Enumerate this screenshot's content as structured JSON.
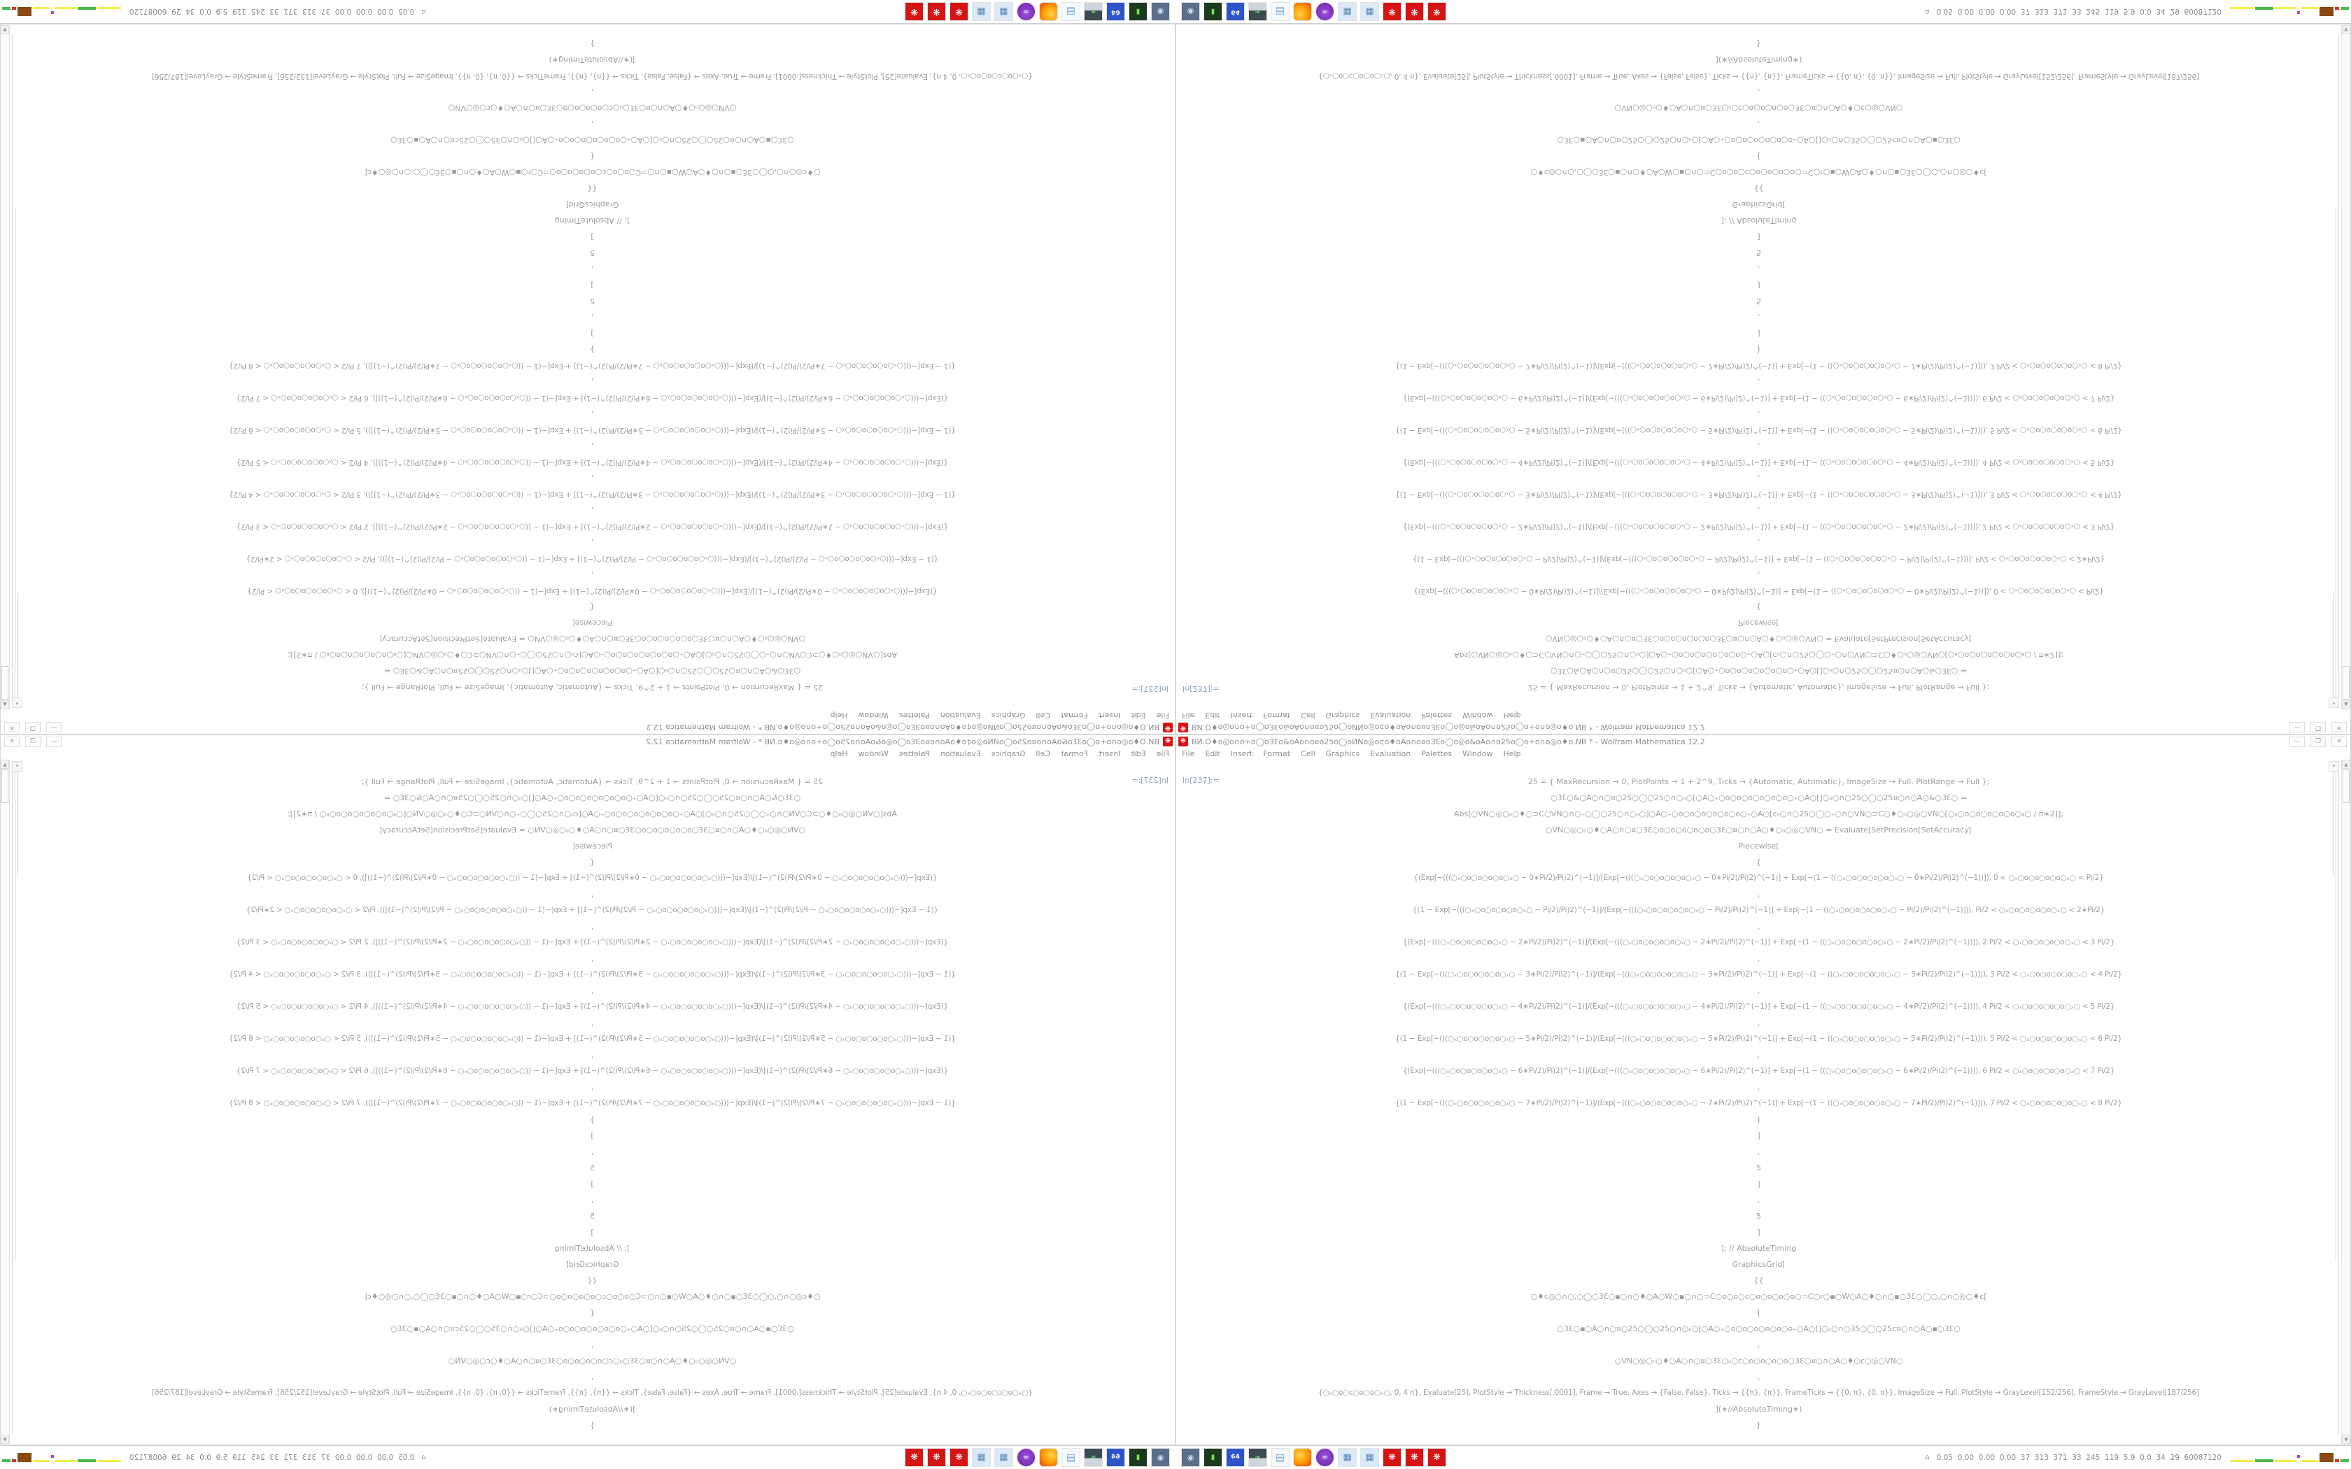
{
  "window": {
    "title_garbled": "ВИ.О♦о◎о∩о+о◯оЗƐо&оАо∩о¤о25о◯оИNо◎о¢о♦оАо∩о¤оЗƐо◯о◎о&оАо∩о25о◯о+о∩о◎о♦о",
    "title_suffix": ".NB * - Wolfram Mathematica 12.2",
    "controls": {
      "minimize": "—",
      "restore": "❐",
      "close": "✕"
    }
  },
  "menu": {
    "items": [
      "File",
      "Edit",
      "Insert",
      "Format",
      "Cell",
      "Graphics",
      "Evaluation",
      "Palettes",
      "Window",
      "Help"
    ]
  },
  "notebook": {
    "in_label": "In[237]:=",
    "lines": [
      {
        "t": "25 = {  MaxRecursion → 0, PlotPoints → 1 + 2^9, Ticks → {Automatic, Automatic}, ImageSize → Full, PlotRange → Full  };",
        "cls": "head"
      },
      {
        "t": "○3Ɛ○&○A○∩○¤○25○◯○25○∩○₀○[○A○₊○o○o○o○o○o○o○₊○A○[]○₀○∩○25○◯○25¤○∩○A○&○3Ɛ○  =",
        "cls": ""
      },
      {
        "t": "Abs[○VN○◎○₀○♦○⊃C○VN○∩○₊○◯○25○∩○₀○]○A○₊○o○o○o○o○o○o○₊○A○[c₀○∩○25○◯○₊○∩○VN○⊃C○♦○₀○◎○VN○[○₈○o○o○o○o○o○₈○ / π∗2]];",
        "cls": ""
      },
      {
        "t": "○VN○◎○₀○♦○A○∩○¤○3Ɛ○o○o○o○o○o○3Ɛ○¤○∩○A○♦○₀○◎○VN○ = Evaluate[SetPrecision[SetAccuracy[",
        "cls": ""
      },
      {
        "t": "Piecewise[",
        "cls": ""
      },
      {
        "t": "{",
        "cls": ""
      },
      {
        "t": "{(Exp[−(((○ₓ○o○o○o○o○ₓ○ − 0∗Pi/2)/Pi)2)^(−1)]/(Exp[−(((○ₓ○o○o○o○o○ₓ○ − 0∗Pi/2)/Pi)2)^(−1)] + Exp[−(1 − ((○ₓ○o○o○o○o○ₓ○ − 0∗Pi/2)/Pi)2)^(−1))]), 0 < ○ₓ○o○o○o○o○ₓ○ < Pi/2}",
        "cls": "wide"
      },
      {
        "t": ",",
        "cls": ""
      },
      {
        "t": "{(1 − Exp[−(((○ₓ○o○o○o○o○ₓ○ − Pi/2)/Pi)2)^(−1)]/(Exp[−(((○ₓ○o○o○o○o○ₓ○ − Pi/2)/Pi)2)^(−1)] + Exp[−(1 − ((○ₓ○o○o○o○o○ₓ○ − Pi/2)/Pi)2)^(−1)])), Pi/2 < ○ₓ○o○o○o○o○ₓ○ < 2∗Pi/2}",
        "cls": "wide"
      },
      {
        "t": ",",
        "cls": ""
      },
      {
        "t": "{(Exp[−(((○ₓ○o○o○o○o○ₓ○ − 2∗Pi/2)/Pi)2)^(−1)]/(Exp[−(((○ₓ○o○o○o○o○ₓ○ − 2∗Pi/2)/Pi)2)^(−1)] + Exp[−(1 − ((○ₓ○o○o○o○o○ₓ○ − 2∗Pi/2)/Pi)2)^(−1))]), 2 Pi/2 < ○ₓ○o○o○o○o○ₓ○ < 3 Pi/2}",
        "cls": "wide"
      },
      {
        "t": ",",
        "cls": ""
      },
      {
        "t": "{(1 − Exp[−(((○ₓ○o○o○o○o○ₓ○ − 3∗Pi/2)/Pi)2)^(−1)]/(Exp[−(((○ₓ○o○o○o○o○ₓ○ − 3∗Pi/2)/Pi)2)^(−1)] + Exp[−(1 − ((○ₓ○o○o○o○o○ₓ○ − 3∗Pi/2)/Pi)2)^(−1)])), 3 Pi/2 < ○ₓ○o○o○o○o○ₓ○ < 4 Pi/2}",
        "cls": "wide"
      },
      {
        "t": ",",
        "cls": ""
      },
      {
        "t": "{(Exp[−(((○ₓ○o○o○o○o○ₓ○ − 4∗Pi/2)/Pi)2)^(−1)]/(Exp[−(((○ₓ○o○o○o○o○ₓ○ − 4∗Pi/2)/Pi)2)^(−1)] + Exp[−(1 − ((○ₓ○o○o○o○o○ₓ○ − 4∗Pi/2)/Pi)2)^(−1))]), 4 Pi/2 < ○ₓ○o○o○o○o○ₓ○ < 5 Pi/2}",
        "cls": "wide"
      },
      {
        "t": ",",
        "cls": ""
      },
      {
        "t": "{(1 − Exp[−(((○ₓ○o○o○o○o○ₓ○ − 5∗Pi/2)/Pi)2)^(−1)]/(Exp[−(((○ₓ○o○o○o○o○ₓ○ − 5∗Pi/2)/Pi)2)^(−1)] + Exp[−(1 − ((○ₓ○o○o○o○o○ₓ○ − 5∗Pi/2)/Pi)2)^(−1)])), 5 Pi/2 < ○ₓ○o○o○o○o○ₓ○ < 6 Pi/2}",
        "cls": "wide"
      },
      {
        "t": ",",
        "cls": ""
      },
      {
        "t": "{(Exp[−(((○ₓ○o○o○o○o○ₓ○ − 6∗Pi/2)/Pi)2)^(−1)]/(Exp[−(((○ₓ○o○o○o○o○ₓ○ − 6∗Pi/2)/Pi)2)^(−1)] + Exp[−(1 − ((○ₓ○o○o○o○o○ₓ○ − 6∗Pi/2)/Pi)2)^(−1))]), 6 Pi/2 < ○ₓ○o○o○o○o○ₓ○ < 7 Pi/2}",
        "cls": "wide"
      },
      {
        "t": ",",
        "cls": ""
      },
      {
        "t": "{(1 − Exp[−(((○ₓ○o○o○o○o○ₓ○ − 7∗Pi/2)/Pi)2)^(−1)]/(Exp[−(((○ₓ○o○o○o○o○ₓ○ − 7∗Pi/2)/Pi)2)^(−1)] + Exp[−(1 − ((○ₓ○o○o○o○o○ₓ○ − 7∗Pi/2)/Pi)2)^(−1)])), 7 Pi/2 < ○ₓ○o○o○o○o○ₓ○ < 8 Pi/2}",
        "cls": "wide"
      },
      {
        "t": "}",
        "cls": ""
      },
      {
        "t": "]",
        "cls": ""
      },
      {
        "t": ",",
        "cls": ""
      },
      {
        "t": "5",
        "cls": ""
      },
      {
        "t": "]",
        "cls": ""
      },
      {
        "t": ",",
        "cls": ""
      },
      {
        "t": "5",
        "cls": ""
      },
      {
        "t": "]",
        "cls": ""
      },
      {
        "t": "]; // AbsoluteTiming",
        "cls": ""
      },
      {
        "t": "GraphicsGrid[",
        "cls": ""
      },
      {
        "t": "{{",
        "cls": ""
      },
      {
        "t": "○♦c◎○∩○,○◯○3Ɛ○▪○∩○♦○A○W○▪○∩○⊃C○o○o○c○o○o○o○o○⊃C○r○▪○W○A○♦○∩○▪○3Ɛ○◯○,○∩○◎○♦c[",
        "cls": ""
      },
      {
        "t": "{",
        "cls": ""
      },
      {
        "t": "○3Ɛ○▪○A○∩○¤○25○◯○25○∩○₀○[○A○₊○o○o○o○o○o○o₊○A○[]○₀○∩○35○◯○25c¤○∩○A○▪○3Ɛ○",
        "cls": ""
      },
      {
        "t": ",",
        "cls": ""
      },
      {
        "t": "○VN○◎○₀○♦○A○∩○¤○3Ɛ○₀○c○o○o○o○o○3Ɛ○¤○∩○A○♦○c○◎○VN○",
        "cls": ""
      },
      {
        "t": ",",
        "cls": ""
      },
      {
        "t": "{○ₓ○o○c○o○o○ₓ○, 0, 4 π}, Evaluate[25], PlotStyle → Thickness[.0001], Frame → True, Axes → {False, False}, Ticks → {{π}, {π}}, FrameTicks → {{0, π}, {0, π}}, ImageSize → Full, PlotStyle → GrayLevel[152/256], FrameStyle → GrayLevel[187/256]",
        "cls": "wide"
      },
      {
        "t": "](∗//AbsoluteTiming∗)",
        "cls": ""
      },
      {
        "t": "}",
        "cls": ""
      }
    ]
  },
  "scrollbar": {
    "up": "▲",
    "down": "▼",
    "elision": "▾"
  },
  "taskbar": {
    "icons": [
      {
        "name": "screenshot-tool",
        "style": "ic-shot",
        "glyph": "◉"
      },
      {
        "name": "disk-utility",
        "style": "ic-drive",
        "glyph": "▮"
      },
      {
        "name": "floppy-64",
        "style": "ic-floppy",
        "glyph": "64"
      },
      {
        "name": "system-monitor",
        "style": "ic-monitor",
        "glyph": "❧"
      },
      {
        "name": "notepad",
        "style": "ic-notepad",
        "glyph": "▤"
      },
      {
        "name": "firefox",
        "style": "ic-firefox",
        "glyph": ""
      },
      {
        "name": "privacy-owl",
        "style": "ic-owl",
        "glyph": "∞"
      },
      {
        "name": "calculator-1",
        "style": "ic-calc",
        "glyph": "▦"
      },
      {
        "name": "calculator-2",
        "style": "ic-calc",
        "glyph": "▦"
      },
      {
        "name": "mathematica-1",
        "style": "ic-mma",
        "glyph": "❋"
      },
      {
        "name": "mathematica-2",
        "style": "ic-mma",
        "glyph": "❋"
      },
      {
        "name": "mathematica-3",
        "style": "ic-mma",
        "glyph": "❋"
      }
    ],
    "status": {
      "prefix": "⌂",
      "values": [
        "0.05",
        "0.00",
        "0.00",
        "0.00",
        "37",
        "313",
        "371",
        "33",
        "245",
        "119",
        "5.9",
        "0.0",
        "34",
        "29",
        "60087120"
      ]
    },
    "sparklines": [
      {
        "c": "#f2ee4a",
        "w": 34,
        "h": 3,
        "raise": 0
      },
      {
        "c": "#49b84e",
        "w": 26,
        "h": 4,
        "raise": 0
      },
      {
        "c": "#f2ee4a",
        "w": 30,
        "h": 3,
        "raise": 0
      },
      {
        "c": "#b145c9",
        "w": 4,
        "h": 4,
        "raise": 6
      },
      {
        "c": "#f2ee4a",
        "w": 24,
        "h": 3,
        "raise": 0
      },
      {
        "c": "#8a4a12",
        "w": 20,
        "h": 13,
        "raise": 0
      },
      {
        "c": "#d0342c",
        "w": 6,
        "h": 4,
        "raise": 0
      },
      {
        "c": "#49b84e",
        "w": 12,
        "h": 4,
        "raise": 0
      }
    ]
  },
  "colors": {
    "mathematica_red": "#d51515",
    "code_text": "#9d9d9d",
    "in_label_blue": "#8b9dc3",
    "chrome_text": "#8f8f8f",
    "taskbar_border": "#cfcfcf"
  }
}
